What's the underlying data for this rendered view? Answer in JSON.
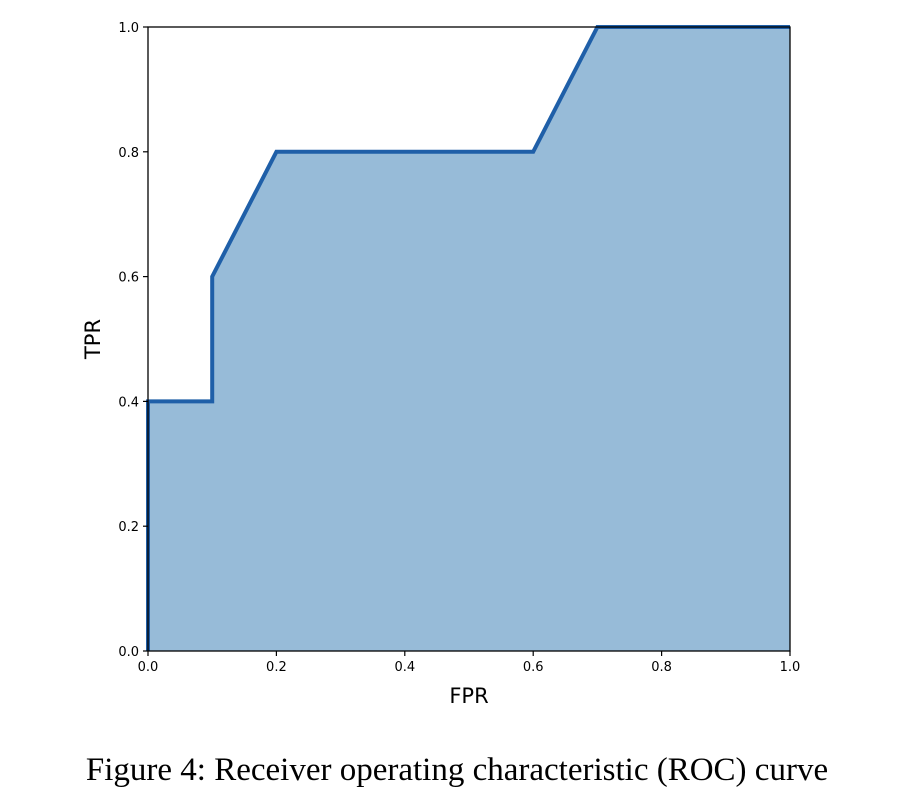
{
  "caption": "Figure 4: Receiver operating characteristic (ROC) curve",
  "chart_data": {
    "type": "area",
    "title": "",
    "xlabel": "FPR",
    "ylabel": "TPR",
    "xlim": [
      0.0,
      1.0
    ],
    "ylim": [
      0.0,
      1.0
    ],
    "grid": false,
    "x_ticks": [
      0.0,
      0.2,
      0.4,
      0.6,
      0.8,
      1.0
    ],
    "y_ticks": [
      0.0,
      0.2,
      0.4,
      0.6,
      0.8,
      1.0
    ],
    "x_tick_labels": [
      "0.0",
      "0.2",
      "0.4",
      "0.6",
      "0.8",
      "1.0"
    ],
    "y_tick_labels": [
      "0.0",
      "0.2",
      "0.4",
      "0.6",
      "0.8",
      "1.0"
    ],
    "series": [
      {
        "x": [
          0.0,
          0.0,
          0.1,
          0.1,
          0.2,
          0.6,
          0.7,
          1.0
        ],
        "y": [
          0.0,
          0.4,
          0.4,
          0.6,
          0.8,
          0.8,
          1.0,
          1.0
        ]
      }
    ],
    "colors": {
      "line": "#1f5fa8",
      "fill": "#97bbd8"
    }
  }
}
